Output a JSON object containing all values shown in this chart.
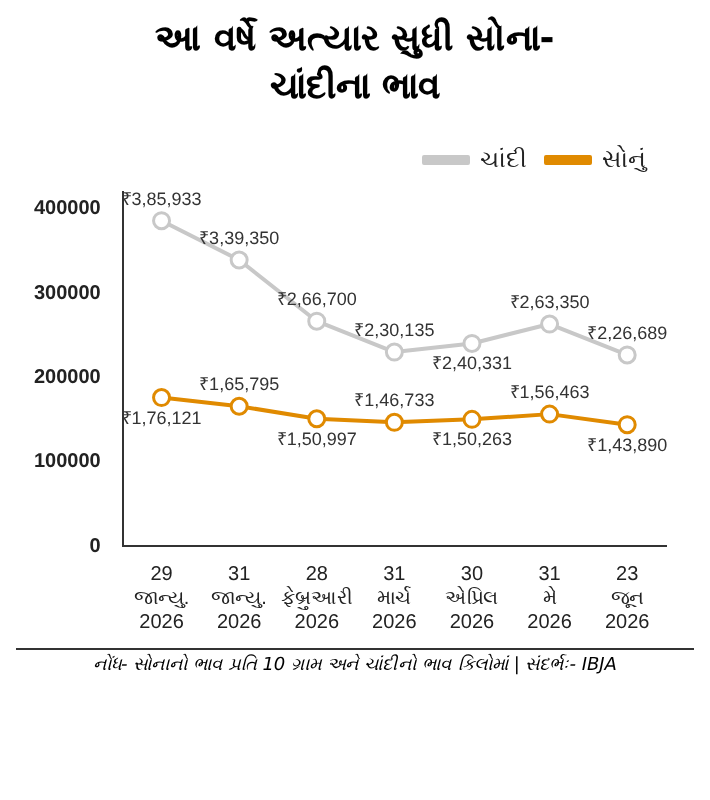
{
  "chart_data": {
    "type": "line",
    "title": "આ વર્ષે અત્યાર સુધી સોના-ચાંદીના ભાવ",
    "categories": [
      "29 જાન્યુ. 2026",
      "31 જાન્યુ. 2026",
      "28 ફેબ્રુઆરી 2026",
      "31 માર્ચ 2026",
      "30 એપ્રિલ 2026",
      "31 મે 2026",
      "23 જૂન 2026"
    ],
    "series": [
      {
        "name": "ચાંદી",
        "color": "#c8c8c8",
        "values": [
          385933,
          339350,
          266700,
          230135,
          240331,
          263350,
          226689
        ],
        "value_labels": [
          "₹3,85,933",
          "₹3,39,350",
          "₹2,66,700",
          "₹2,30,135",
          "₹2,40,331",
          "₹2,63,350",
          "₹2,26,689"
        ]
      },
      {
        "name": "સોનું",
        "color": "#e08a00",
        "values": [
          176121,
          165795,
          150997,
          146733,
          150263,
          156463,
          143890
        ],
        "value_labels": [
          "₹1,76,121",
          "₹1,65,795",
          "₹1,50,997",
          "₹1,46,733",
          "₹1,50,263",
          "₹1,56,463",
          "₹1,43,890"
        ]
      }
    ],
    "ylim": [
      0,
      420000
    ],
    "yticks": [
      0,
      100000,
      200000,
      300000,
      400000
    ],
    "grid": false,
    "legend": "top right",
    "marker": "circle",
    "line_style": "solid",
    "annotations": [
      "નોંધ- સોનાનો ભાવ પ્રતિ 10 ગ્રામ અને ચાંદીનો ભાવ કિલોમાં | સંદર્ભઃ- IBJA"
    ]
  }
}
